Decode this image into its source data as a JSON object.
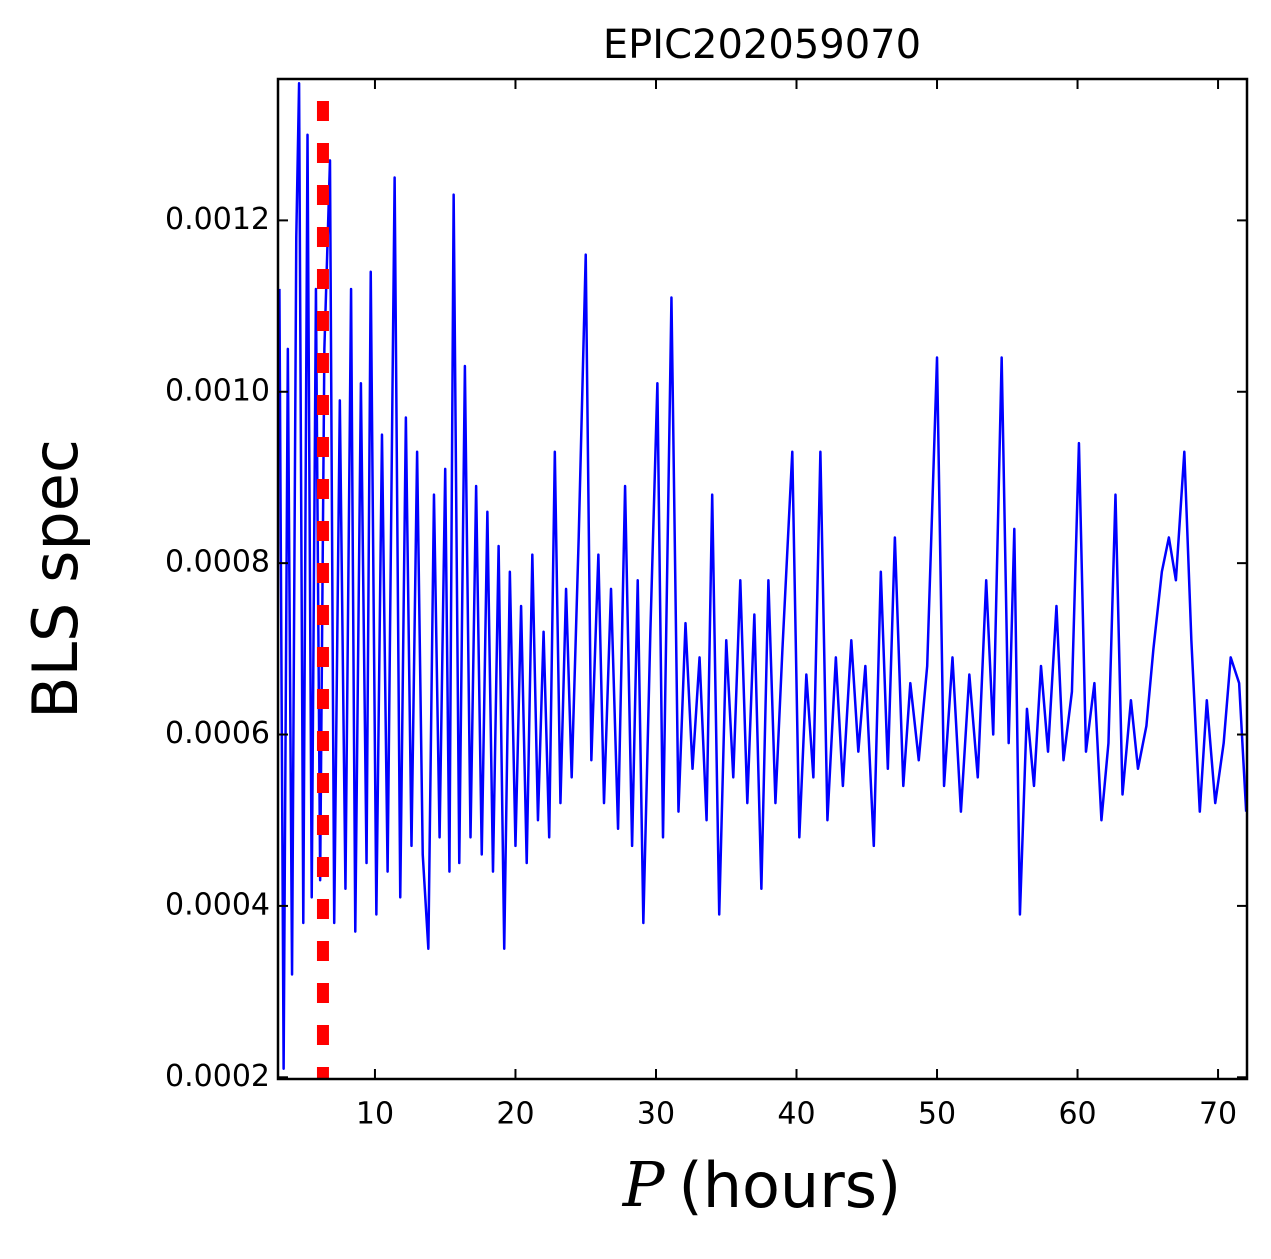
{
  "chart_data": {
    "type": "line",
    "title": "EPIC202059070",
    "ylabel": "BLS spec",
    "xlabel_symbol": "P",
    "xlabel_text": "(hours)",
    "x": [
      3.2,
      3.5,
      3.8,
      4.1,
      4.4,
      4.6,
      4.9,
      5.2,
      5.5,
      5.8,
      6.1,
      6.4,
      6.8,
      7.1,
      7.5,
      7.9,
      8.3,
      8.6,
      9.0,
      9.4,
      9.7,
      10.1,
      10.5,
      10.9,
      11.4,
      11.8,
      12.2,
      12.6,
      13.0,
      13.4,
      13.8,
      14.2,
      14.6,
      15.0,
      15.3,
      15.6,
      16.0,
      16.4,
      16.8,
      17.2,
      17.6,
      18.0,
      18.4,
      18.8,
      19.2,
      19.6,
      20.0,
      20.4,
      20.8,
      21.2,
      21.6,
      22.0,
      22.4,
      22.8,
      23.2,
      23.6,
      24.0,
      24.5,
      25.0,
      25.4,
      25.9,
      26.3,
      26.8,
      27.3,
      27.8,
      28.3,
      28.7,
      29.1,
      29.6,
      30.1,
      30.5,
      31.1,
      31.6,
      32.1,
      32.6,
      33.1,
      33.6,
      34.0,
      34.5,
      35.0,
      35.5,
      36.0,
      36.5,
      37.0,
      37.5,
      38.0,
      38.5,
      39.0,
      39.7,
      40.2,
      40.7,
      41.2,
      41.7,
      42.2,
      42.8,
      43.3,
      43.9,
      44.4,
      44.9,
      45.5,
      46.0,
      46.5,
      47.0,
      47.6,
      48.1,
      48.7,
      49.3,
      50.0,
      50.5,
      51.1,
      51.7,
      52.3,
      52.9,
      53.5,
      54.0,
      54.6,
      55.1,
      55.5,
      55.9,
      56.4,
      56.9,
      57.4,
      57.9,
      58.5,
      59.0,
      59.6,
      60.1,
      60.6,
      61.2,
      61.7,
      62.2,
      62.7,
      63.2,
      63.8,
      64.3,
      64.9,
      65.4,
      66.0,
      66.5,
      67.0,
      67.6,
      68.1,
      68.7,
      69.2,
      69.8,
      70.4,
      70.9,
      71.5,
      72.0
    ],
    "series": [
      {
        "color": "#0000ff",
        "values": [
          0.00112,
          0.00021,
          0.00105,
          0.00032,
          0.00118,
          0.00136,
          0.00038,
          0.0013,
          0.00041,
          0.00112,
          0.00043,
          0.00105,
          0.00127,
          0.00038,
          0.00099,
          0.00042,
          0.00112,
          0.00037,
          0.00101,
          0.00045,
          0.00114,
          0.00039,
          0.00095,
          0.00044,
          0.00125,
          0.00041,
          0.00097,
          0.00047,
          0.00093,
          0.00046,
          0.00035,
          0.00088,
          0.00048,
          0.00091,
          0.00044,
          0.00123,
          0.00045,
          0.00103,
          0.00048,
          0.00089,
          0.00046,
          0.00086,
          0.00044,
          0.00082,
          0.00035,
          0.00079,
          0.00047,
          0.00075,
          0.00045,
          0.00081,
          0.0005,
          0.00072,
          0.00048,
          0.00093,
          0.00052,
          0.00077,
          0.00055,
          0.00083,
          0.00116,
          0.00057,
          0.00081,
          0.00052,
          0.00077,
          0.00049,
          0.00089,
          0.00047,
          0.00078,
          0.00038,
          0.00072,
          0.00101,
          0.00048,
          0.00111,
          0.00051,
          0.00073,
          0.00056,
          0.00069,
          0.0005,
          0.00088,
          0.00039,
          0.00071,
          0.00055,
          0.00078,
          0.00052,
          0.00074,
          0.00042,
          0.00078,
          0.00052,
          0.0007,
          0.00093,
          0.00048,
          0.00067,
          0.00055,
          0.00093,
          0.0005,
          0.00069,
          0.00054,
          0.00071,
          0.00058,
          0.00068,
          0.00047,
          0.00079,
          0.00056,
          0.00083,
          0.00054,
          0.00066,
          0.00057,
          0.00068,
          0.00104,
          0.00054,
          0.00069,
          0.00051,
          0.00067,
          0.00055,
          0.00078,
          0.0006,
          0.00104,
          0.00059,
          0.00084,
          0.00039,
          0.00063,
          0.00054,
          0.00068,
          0.00058,
          0.00075,
          0.00057,
          0.00065,
          0.00094,
          0.00058,
          0.00066,
          0.0005,
          0.00059,
          0.00088,
          0.00053,
          0.00064,
          0.00056,
          0.00061,
          0.0007,
          0.00079,
          0.00083,
          0.00078,
          0.00093,
          0.00071,
          0.00051,
          0.00064,
          0.00052,
          0.00059,
          0.00069,
          0.00066,
          0.00051
        ]
      }
    ],
    "reference_period": 6.3,
    "reference_color": "#ff0000",
    "xlim": [
      3.1,
      72.06
    ],
    "ylim": [
      0.000198,
      0.001365
    ],
    "xticks": [
      10,
      20,
      30,
      40,
      50,
      60,
      70
    ],
    "yticks": [
      0.0002,
      0.0004,
      0.0006,
      0.0008,
      {
        "value": 0.001,
        "label": "0.0010"
      },
      0.0012
    ]
  }
}
